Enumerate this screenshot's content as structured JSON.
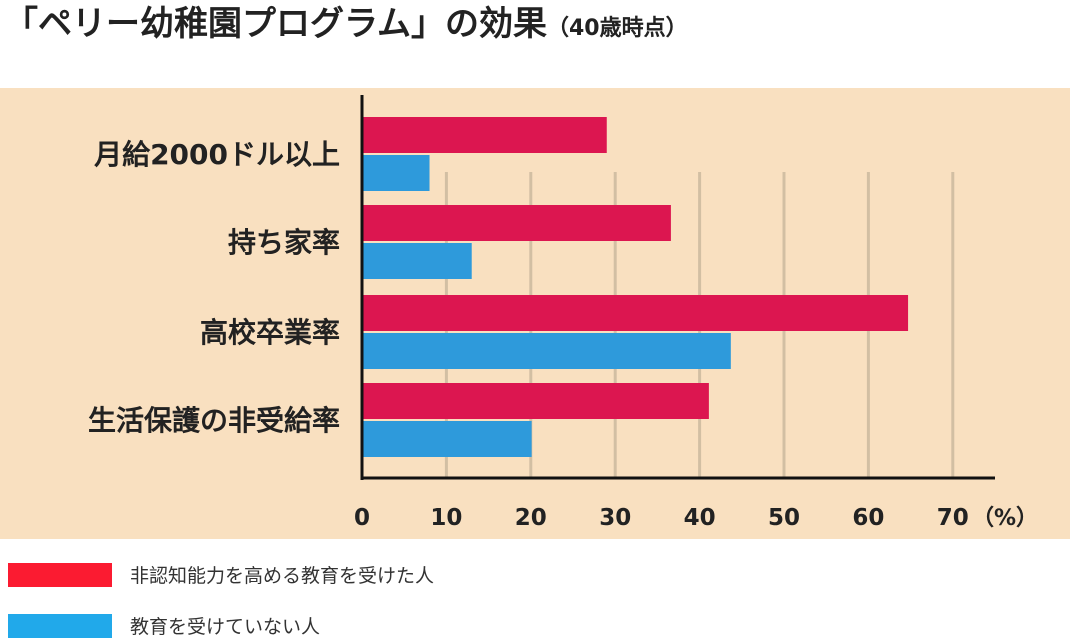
{
  "title": "「ペリー幼稚園プログラム」の効果",
  "subtitle": "（40歳時点）",
  "chart_data": {
    "type": "bar",
    "orientation": "horizontal",
    "categories": [
      "月給2000ドル以上",
      "持ち家率",
      "高校卒業率",
      "生活保護の非受給率"
    ],
    "series": [
      {
        "name": "非認知能力を高める教育を受けた人",
        "values": [
          29,
          36.6,
          64.7,
          41.1
        ],
        "color": "#dc1650"
      },
      {
        "name": "教育を受けていない人",
        "values": [
          8,
          13,
          43.7,
          20.1
        ],
        "color": "#2e9adb"
      }
    ],
    "x_ticks": [
      "0",
      "10",
      "20",
      "30",
      "40",
      "50",
      "60",
      "70"
    ],
    "x_unit": "（%）",
    "xlim": [
      0,
      75
    ],
    "grid": true,
    "legend_placement": "bottom-left"
  },
  "legend": [
    {
      "label": "非認知能力を高める教育を受けた人",
      "color": "#fb1b31"
    },
    {
      "label": "教育を受けていない人",
      "color": "#21a9ea"
    }
  ]
}
